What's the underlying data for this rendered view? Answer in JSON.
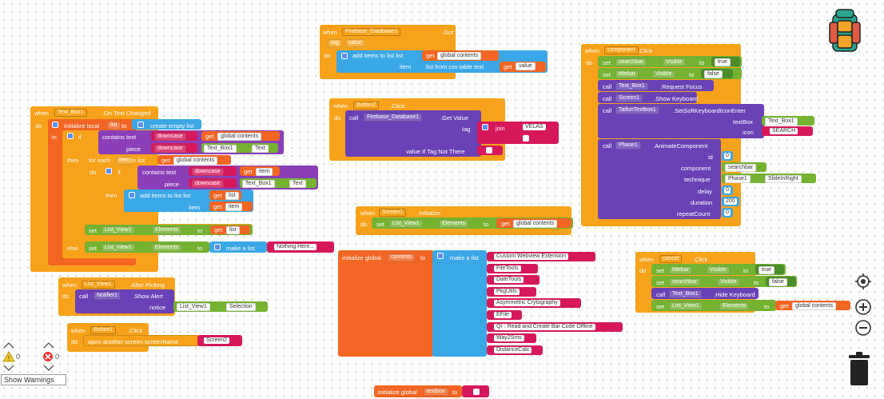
{
  "blocks": {
    "firebase_got_value": {
      "when": "when",
      "component": "Firebase_Database1",
      "event": ".Got Value",
      "tag": "tag",
      "value": "value",
      "do": "do",
      "add_items": "add items to list  list",
      "get": "get",
      "global_contents": "global contents",
      "item": "item",
      "list_from_csv": "list from csv table  text",
      "get_value": "value"
    },
    "text_box_changed": {
      "when": "when",
      "component": "Text_Box1",
      "event": ".On Text Changed",
      "do": "do",
      "init_local": "initialize local",
      "list_var": "list",
      "to": "to",
      "create_empty_list": "create empty list",
      "in": "in",
      "if": "if",
      "contains_text": "contains  text",
      "downcase": "downcase",
      "get": "get",
      "global_contents": "global contents",
      "piece": "piece",
      "text_box": "Text_Box1",
      "text_prop": "Text",
      "then": "then",
      "for_each": "for each",
      "item": "item",
      "in_list": "in list",
      "if2": "if",
      "contains2": "contains  text",
      "get_item": "item",
      "piece2": "piece",
      "text_prop2": "Text",
      "then2": "then",
      "add_items": "add items to list  list",
      "get_list": "list",
      "item_label": "item",
      "get_item2": "item",
      "set": "set",
      "list_view": "List_View1",
      "elements": "Elements",
      "to2": "to",
      "get_list2": "list",
      "else": "else",
      "make_list": "make a list",
      "nothing_here": "Nothing Here..."
    },
    "button2_click": {
      "when": "when",
      "component": "Button2",
      "event": ".Click",
      "do": "do",
      "call": "call",
      "firebase": "Firebase_Database1",
      "method": ".Get Value",
      "tag": "tag",
      "join": "join",
      "velas": "VELAS",
      "empty": "",
      "value_if": "value If Tag Not There",
      "empty2": ""
    },
    "screen1_init": {
      "when": "when",
      "component": "Screen1",
      "event": ".Initialize",
      "do": "do",
      "set": "set",
      "list_view": "List_View1",
      "elements": "Elements",
      "to": "to",
      "get": "get",
      "global_contents": "global contents"
    },
    "global_contents": {
      "init": "initialize global",
      "name": "contents",
      "to": "to",
      "make_list": "make a list",
      "items": [
        "Custom Webview Extension",
        "FileTools",
        "DateTools",
        "PkgUtils",
        "Asymmetric Crytography",
        "EFile",
        "Qr : Read and Create Bar Code Offline",
        "Way2Sms",
        "DistanceCalc"
      ]
    },
    "global_textbox": {
      "init": "initialize global",
      "name": "textbox",
      "to": "to",
      "value": ""
    },
    "list_view_picking": {
      "when": "when",
      "component": "List_View1",
      "event": ".After Picking",
      "do": "do",
      "call": "call",
      "notifier": "Notifier1",
      "method": ".Show Alert",
      "notice": "notice",
      "list_view": "List_View1",
      "selection": "Selection"
    },
    "button1_click": {
      "when": "when",
      "component": "Button1",
      "event": ".Click",
      "do": "do",
      "open": "open another screen  screenName",
      "screen": "Screen2"
    },
    "search_click": {
      "when": "when",
      "component": "component",
      "event": ".Click",
      "do": "do",
      "set": "set",
      "searchbar": "searchbar",
      "visible": "Visible",
      "to": "to",
      "true": "true",
      "titlebar": "titlebar",
      "false": "false",
      "call": "call",
      "text_box": "Text_Box1",
      "request_focus": ".Request Focus",
      "screen": "Screen1",
      "show_keyboard": ".Show Keyboard",
      "taifun": "TaifunTextbox1",
      "set_soft": ".SetSoftKeyboardIconEnter",
      "textbox_label": "textBox",
      "icon_label": "icon",
      "search_text": "SEARCH",
      "phase": "Phase1",
      "animate": ".AnimateComponent",
      "id": "id",
      "id_val": "0",
      "technique": "technique",
      "slide": "SlideInRight",
      "delay": "delay",
      "delay_val": "0",
      "duration": "duration",
      "duration_val": "200",
      "repeat": "repeatCount",
      "repeat_val": "0"
    },
    "cancel_click": {
      "when": "when",
      "component": "cancel",
      "event": ".Click",
      "do": "do",
      "set": "set",
      "titlebar": "titlebar",
      "visible": "Visible",
      "to": "to",
      "true": "true",
      "searchbar": "searchbar",
      "false": "false",
      "call": "call",
      "text_box": "Text_Box1",
      "hide_keyboard": ".Hide Keyboard",
      "list_view": "List_View1",
      "elements": "Elements",
      "get": "get",
      "global_contents": "global contents"
    }
  },
  "warnings": {
    "warn_count": "0",
    "error_count": "0",
    "show_warnings": "Show Warnings"
  },
  "icons": [
    "backpack-icon",
    "target-icon",
    "zoom-in-icon",
    "zoom-out-icon",
    "trash-icon",
    "warning-icon",
    "error-icon"
  ]
}
